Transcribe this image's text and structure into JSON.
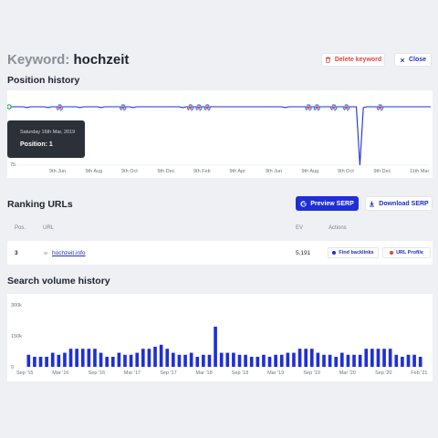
{
  "header": {
    "title_prefix": "Keyword:",
    "keyword": "hochzeit",
    "delete_label": "Delete keyword",
    "close_label": "Close",
    "delete_color": "#e0433b",
    "accent": "#1e2fd6"
  },
  "position_history": {
    "heading": "Position history",
    "y_label_bottom": "75",
    "x_labels": [
      "9th Jun",
      "9th Aug",
      "9th Oct",
      "9th Dec",
      "9th Feb",
      "9th Apr",
      "9th Jun",
      "9th Aug",
      "9th Oct",
      "9th Dec",
      "11th Mar"
    ],
    "tooltip_date": "Saturday 16th Mar, 2019",
    "tooltip_position": "Position: 1",
    "line_color": "#1e2fd6",
    "marker_icon": "google-g-icon"
  },
  "ranking": {
    "heading": "Ranking URLs",
    "preview_label": "Preview SERP",
    "download_label": "Download SERP",
    "columns": [
      "Pos.",
      "URL",
      "EV",
      "Actions"
    ],
    "rows": [
      {
        "pos": "3",
        "url": "hochzeit.info",
        "ev": "5,191",
        "find_label": "Find backlinks",
        "profile_label": "URL Profile"
      }
    ]
  },
  "volume": {
    "heading": "Search volume history",
    "y_labels": [
      "300k",
      "150k",
      "0"
    ],
    "x_labels": [
      "Sep '15",
      "Mar '16",
      "Sep '16",
      "Mar '17",
      "Sep '17",
      "Mar '18",
      "Sep '18",
      "Mar '19",
      "Sep '19",
      "Mar '20",
      "Sep '20",
      "Feb '21"
    ]
  },
  "chart_data": [
    {
      "type": "line",
      "title": "Position history",
      "ylabel": "",
      "y_tick_labels": [
        "75"
      ],
      "x_tick_labels": [
        "9th Jun",
        "9th Aug",
        "9th Oct",
        "9th Dec",
        "9th Feb",
        "9th Apr",
        "9th Jun",
        "9th Aug",
        "9th Oct",
        "9th Dec",
        "11th Mar"
      ],
      "ylim": [
        1,
        75
      ],
      "inverted_y": true,
      "series": [
        {
          "values": [
            1,
            1,
            1,
            1,
            1,
            2,
            1,
            1,
            1,
            1,
            1,
            2,
            1,
            1,
            1,
            1,
            1,
            1,
            1,
            1,
            2,
            1,
            1,
            1,
            1,
            1,
            2,
            1,
            1,
            1,
            1,
            1,
            1,
            1,
            1,
            2,
            1,
            1,
            1,
            1,
            1,
            1,
            1,
            1,
            1,
            1,
            1,
            1,
            1,
            2,
            1,
            1,
            1,
            1,
            1,
            1,
            1,
            1,
            1,
            1,
            1,
            1,
            1,
            1,
            1,
            1,
            1,
            1,
            1,
            1,
            1,
            1,
            1,
            1,
            1,
            1,
            1,
            1,
            2,
            1,
            1,
            1,
            1,
            1,
            1,
            1,
            1,
            1,
            1,
            1,
            1,
            1,
            1,
            1,
            1,
            1,
            1,
            1,
            1,
            75,
            2,
            1,
            1,
            1,
            1,
            1,
            1,
            1,
            1,
            1,
            1,
            1,
            1,
            1,
            1,
            1,
            1,
            1,
            1,
            1
          ]
        }
      ]
    },
    {
      "type": "bar",
      "title": "Search volume history",
      "y_tick_labels": [
        "300k",
        "150k",
        "0"
      ],
      "ylim": [
        0,
        300000
      ],
      "x_tick_labels": [
        "Sep '15",
        "Mar '16",
        "Sep '16",
        "Mar '17",
        "Sep '17",
        "Mar '18",
        "Sep '18",
        "Mar '19",
        "Sep '19",
        "Mar '20",
        "Sep '20",
        "Feb '21"
      ],
      "values": [
        60000,
        50000,
        50000,
        50000,
        70000,
        60000,
        70000,
        90000,
        90000,
        90000,
        90000,
        90000,
        70000,
        50000,
        50000,
        70000,
        60000,
        60000,
        70000,
        90000,
        90000,
        100000,
        110000,
        90000,
        70000,
        60000,
        60000,
        70000,
        50000,
        60000,
        60000,
        200000,
        70000,
        70000,
        70000,
        60000,
        60000,
        50000,
        50000,
        60000,
        50000,
        60000,
        60000,
        70000,
        70000,
        90000,
        90000,
        90000,
        70000,
        60000,
        60000,
        50000,
        70000,
        60000,
        60000,
        60000,
        90000,
        90000,
        90000,
        90000,
        90000,
        60000,
        50000,
        60000,
        60000,
        50000
      ]
    }
  ]
}
